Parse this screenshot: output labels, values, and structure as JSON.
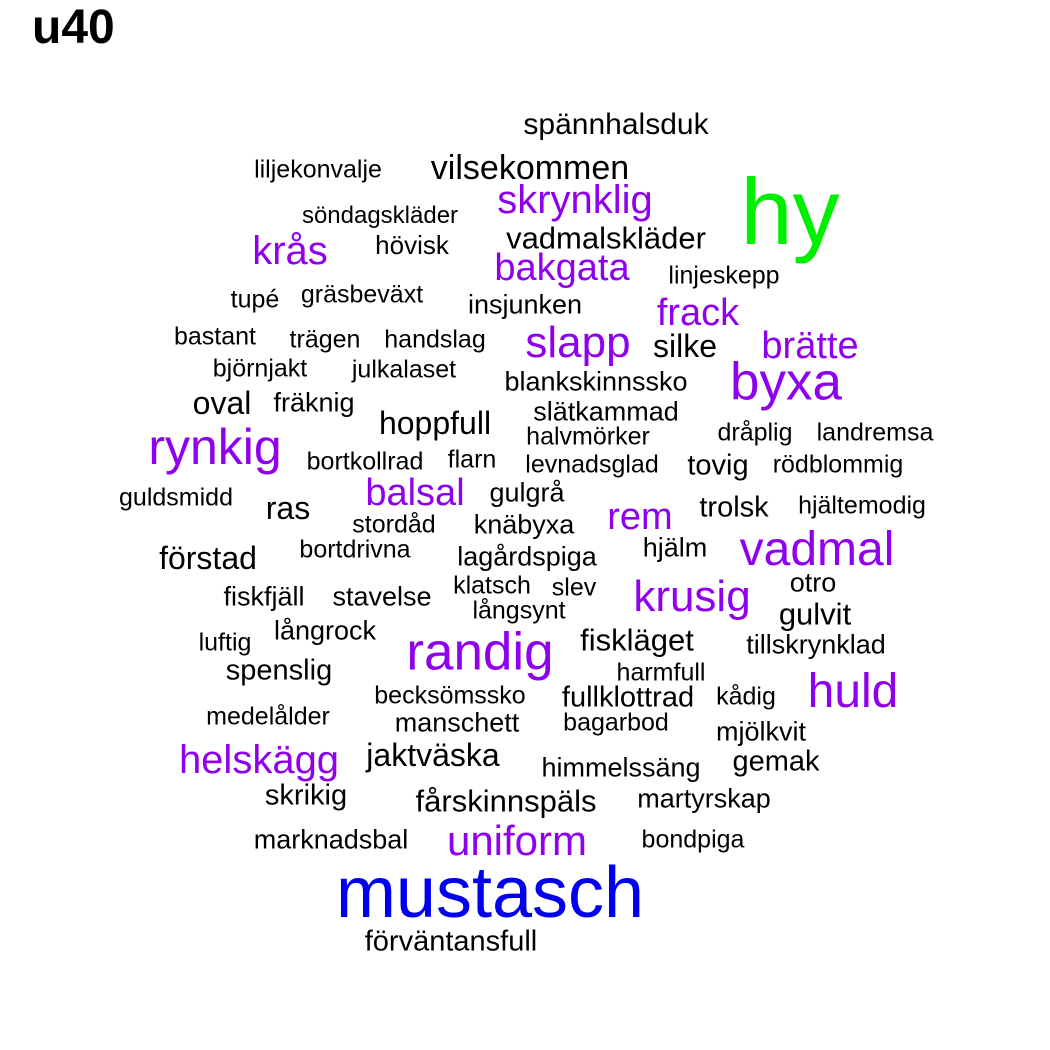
{
  "title": "u40",
  "colors": {
    "black": "#000000",
    "purple": "#8f00ee",
    "green": "#00ee00",
    "blue": "#0000ee"
  },
  "words": [
    {
      "text": "spännhalsduk",
      "color": "black"
    },
    {
      "text": "liljekonvalje",
      "color": "black"
    },
    {
      "text": "vilsekommen",
      "color": "black"
    },
    {
      "text": "hy",
      "color": "green"
    },
    {
      "text": "skrynklig",
      "color": "purple"
    },
    {
      "text": "söndagskläder",
      "color": "black"
    },
    {
      "text": "vadmalskläder",
      "color": "black"
    },
    {
      "text": "krås",
      "color": "purple"
    },
    {
      "text": "hövisk",
      "color": "black"
    },
    {
      "text": "bakgata",
      "color": "purple"
    },
    {
      "text": "linjeskepp",
      "color": "black"
    },
    {
      "text": "tupé",
      "color": "black"
    },
    {
      "text": "gräsbeväxt",
      "color": "black"
    },
    {
      "text": "insjunken",
      "color": "black"
    },
    {
      "text": "frack",
      "color": "purple"
    },
    {
      "text": "bastant",
      "color": "black"
    },
    {
      "text": "trägen",
      "color": "black"
    },
    {
      "text": "handslag",
      "color": "black"
    },
    {
      "text": "slapp",
      "color": "purple"
    },
    {
      "text": "silke",
      "color": "black"
    },
    {
      "text": "brätte",
      "color": "purple"
    },
    {
      "text": "björnjakt",
      "color": "black"
    },
    {
      "text": "julkalaset",
      "color": "black"
    },
    {
      "text": "blankskinnssko",
      "color": "black"
    },
    {
      "text": "byxa",
      "color": "purple"
    },
    {
      "text": "oval",
      "color": "black"
    },
    {
      "text": "fräknig",
      "color": "black"
    },
    {
      "text": "slätkammad",
      "color": "black"
    },
    {
      "text": "hoppfull",
      "color": "black"
    },
    {
      "text": "halvmörker",
      "color": "black"
    },
    {
      "text": "dråplig",
      "color": "black"
    },
    {
      "text": "landremsa",
      "color": "black"
    },
    {
      "text": "rynkig",
      "color": "purple"
    },
    {
      "text": "bortkollrad",
      "color": "black"
    },
    {
      "text": "flarn",
      "color": "black"
    },
    {
      "text": "levnadsglad",
      "color": "black"
    },
    {
      "text": "tovig",
      "color": "black"
    },
    {
      "text": "rödblommig",
      "color": "black"
    },
    {
      "text": "guldsmidd",
      "color": "black"
    },
    {
      "text": "balsal",
      "color": "purple"
    },
    {
      "text": "gulgrå",
      "color": "black"
    },
    {
      "text": "ras",
      "color": "black"
    },
    {
      "text": "trolsk",
      "color": "black"
    },
    {
      "text": "hjältemodig",
      "color": "black"
    },
    {
      "text": "stordåd",
      "color": "black"
    },
    {
      "text": "knäbyxa",
      "color": "black"
    },
    {
      "text": "rem",
      "color": "purple"
    },
    {
      "text": "förstad",
      "color": "black"
    },
    {
      "text": "bortdrivna",
      "color": "black"
    },
    {
      "text": "lagårdspiga",
      "color": "black"
    },
    {
      "text": "hjälm",
      "color": "black"
    },
    {
      "text": "vadmal",
      "color": "purple"
    },
    {
      "text": "klatsch",
      "color": "black"
    },
    {
      "text": "slev",
      "color": "black"
    },
    {
      "text": "otro",
      "color": "black"
    },
    {
      "text": "fiskfjäll",
      "color": "black"
    },
    {
      "text": "stavelse",
      "color": "black"
    },
    {
      "text": "krusig",
      "color": "purple"
    },
    {
      "text": "långsynt",
      "color": "black"
    },
    {
      "text": "gulvit",
      "color": "black"
    },
    {
      "text": "långrock",
      "color": "black"
    },
    {
      "text": "luftig",
      "color": "black"
    },
    {
      "text": "randig",
      "color": "purple"
    },
    {
      "text": "fiskläget",
      "color": "black"
    },
    {
      "text": "tillskrynklad",
      "color": "black"
    },
    {
      "text": "spenslig",
      "color": "black"
    },
    {
      "text": "harmfull",
      "color": "black"
    },
    {
      "text": "becksömssko",
      "color": "black"
    },
    {
      "text": "fullklottrad",
      "color": "black"
    },
    {
      "text": "kådig",
      "color": "black"
    },
    {
      "text": "huld",
      "color": "purple"
    },
    {
      "text": "medelålder",
      "color": "black"
    },
    {
      "text": "manschett",
      "color": "black"
    },
    {
      "text": "bagarbod",
      "color": "black"
    },
    {
      "text": "mjölkvit",
      "color": "black"
    },
    {
      "text": "helskägg",
      "color": "purple"
    },
    {
      "text": "jaktväska",
      "color": "black"
    },
    {
      "text": "himmelssäng",
      "color": "black"
    },
    {
      "text": "gemak",
      "color": "black"
    },
    {
      "text": "skrikig",
      "color": "black"
    },
    {
      "text": "fårskinnspäls",
      "color": "black"
    },
    {
      "text": "martyrskap",
      "color": "black"
    },
    {
      "text": "marknadsbal",
      "color": "black"
    },
    {
      "text": "uniform",
      "color": "purple"
    },
    {
      "text": "bondpiga",
      "color": "black"
    },
    {
      "text": "mustasch",
      "color": "blue"
    },
    {
      "text": "förväntansfull",
      "color": "black"
    }
  ]
}
